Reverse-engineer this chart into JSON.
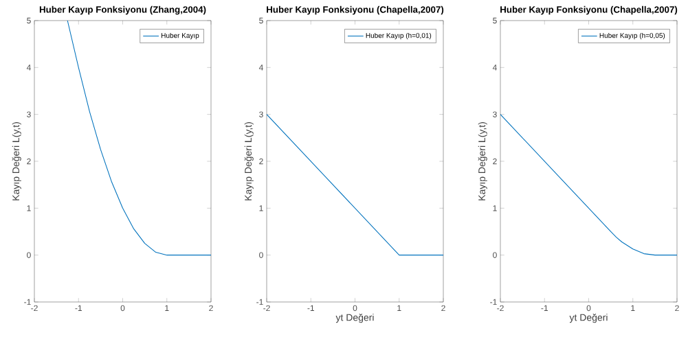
{
  "chart_data": [
    {
      "type": "line",
      "title": "Huber Kayıp Fonksiyonu (Zhang,2004)",
      "ylabel": "Kayıp Değeri L(y,t)",
      "series": [
        {
          "name": "Huber Kayıp",
          "color": "#0072bd",
          "x": [
            -1.25,
            -1,
            -0.75,
            -0.5,
            -0.25,
            0,
            0.25,
            0.5,
            0.75,
            1,
            2
          ],
          "values": [
            5,
            4,
            3.06,
            2.25,
            1.56,
            1,
            0.56,
            0.25,
            0.06,
            0,
            0
          ]
        }
      ],
      "xlim": [
        -2,
        2
      ],
      "ylim": [
        -1,
        5
      ],
      "xticks": [
        -2,
        -1,
        0,
        1,
        2
      ],
      "yticks": [
        -1,
        0,
        1,
        2,
        3,
        4,
        5
      ],
      "legend": "top right"
    },
    {
      "type": "line",
      "title": "Huber Kayıp Fonksiyonu (Chapella,2007)",
      "xlabel": "yt Değeri",
      "ylabel": "Kayıp Değeri L(y,t)",
      "series": [
        {
          "name": "Huber Kayıp (h=0,01)",
          "color": "#0072bd",
          "x": [
            -2,
            1,
            2
          ],
          "values": [
            3,
            0,
            0
          ]
        }
      ],
      "xlim": [
        -2,
        2
      ],
      "ylim": [
        -1,
        5
      ],
      "xticks": [
        -2,
        -1,
        0,
        1,
        2
      ],
      "yticks": [
        -1,
        0,
        1,
        2,
        3,
        4,
        5
      ],
      "legend": "top right"
    },
    {
      "type": "line",
      "title": "Huber Kayıp Fonksiyonu (Chapella,2007)",
      "xlabel": "yt Değeri",
      "ylabel": "Kayıp Değeri L(y,t)",
      "series": [
        {
          "name": "Huber Kayıp (h=0,05)",
          "color": "#0072bd",
          "x": [
            -2,
            0.5,
            0.625,
            0.75,
            1,
            1.25,
            1.5,
            2
          ],
          "values": [
            3,
            0.5,
            0.38,
            0.28,
            0.13,
            0.03,
            0,
            0
          ]
        }
      ],
      "xlim": [
        -2,
        2
      ],
      "ylim": [
        -1,
        5
      ],
      "xticks": [
        -2,
        -1,
        0,
        1,
        2
      ],
      "yticks": [
        -1,
        0,
        1,
        2,
        3,
        4,
        5
      ],
      "legend": "top right"
    }
  ]
}
